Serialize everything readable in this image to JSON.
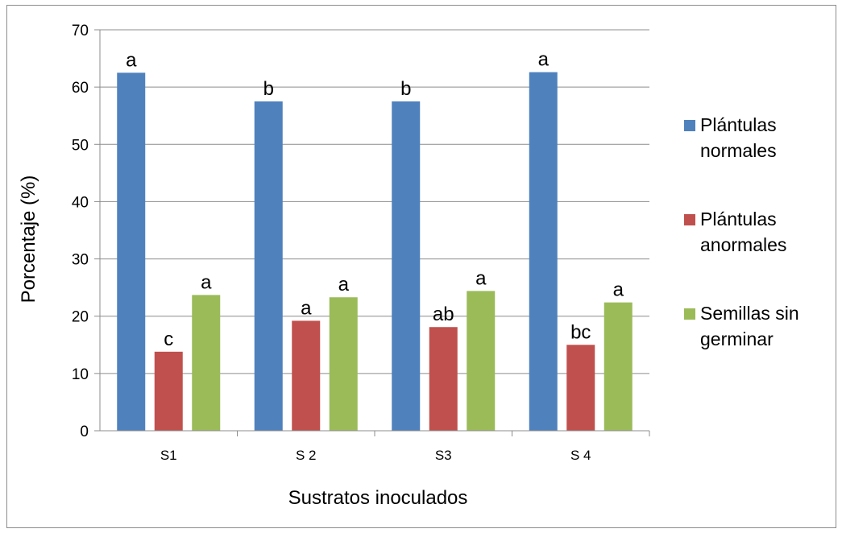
{
  "chart_data": {
    "type": "bar",
    "xlabel": "Sustratos inoculados",
    "ylabel": "Porcentaje (%)",
    "ylim": [
      0,
      70
    ],
    "yticks": [
      0,
      10,
      20,
      30,
      40,
      50,
      60,
      70
    ],
    "grid": true,
    "legend_position": "right",
    "categories": [
      "S1",
      "S 2",
      "S3",
      "S 4"
    ],
    "series": [
      {
        "name": "Plántulas normales",
        "color": "#4f81bd",
        "values": [
          62.5,
          57.5,
          57.5,
          62.6
        ],
        "labels": [
          "a",
          "b",
          "b",
          "a"
        ]
      },
      {
        "name": "Plántulas anormales",
        "color": "#c0504d",
        "values": [
          13.8,
          19.2,
          18.1,
          15.0
        ],
        "labels": [
          "c",
          "a",
          "ab",
          "bc"
        ]
      },
      {
        "name": "Semillas sin germinar",
        "color": "#9bbb59",
        "values": [
          23.7,
          23.3,
          24.4,
          22.4
        ],
        "labels": [
          "a",
          "a",
          "a",
          "a"
        ]
      }
    ],
    "legend_lines": [
      [
        "Plántulas",
        "normales"
      ],
      [
        "Plántulas",
        "anormales"
      ],
      [
        "Semillas sin",
        "germinar"
      ]
    ]
  }
}
